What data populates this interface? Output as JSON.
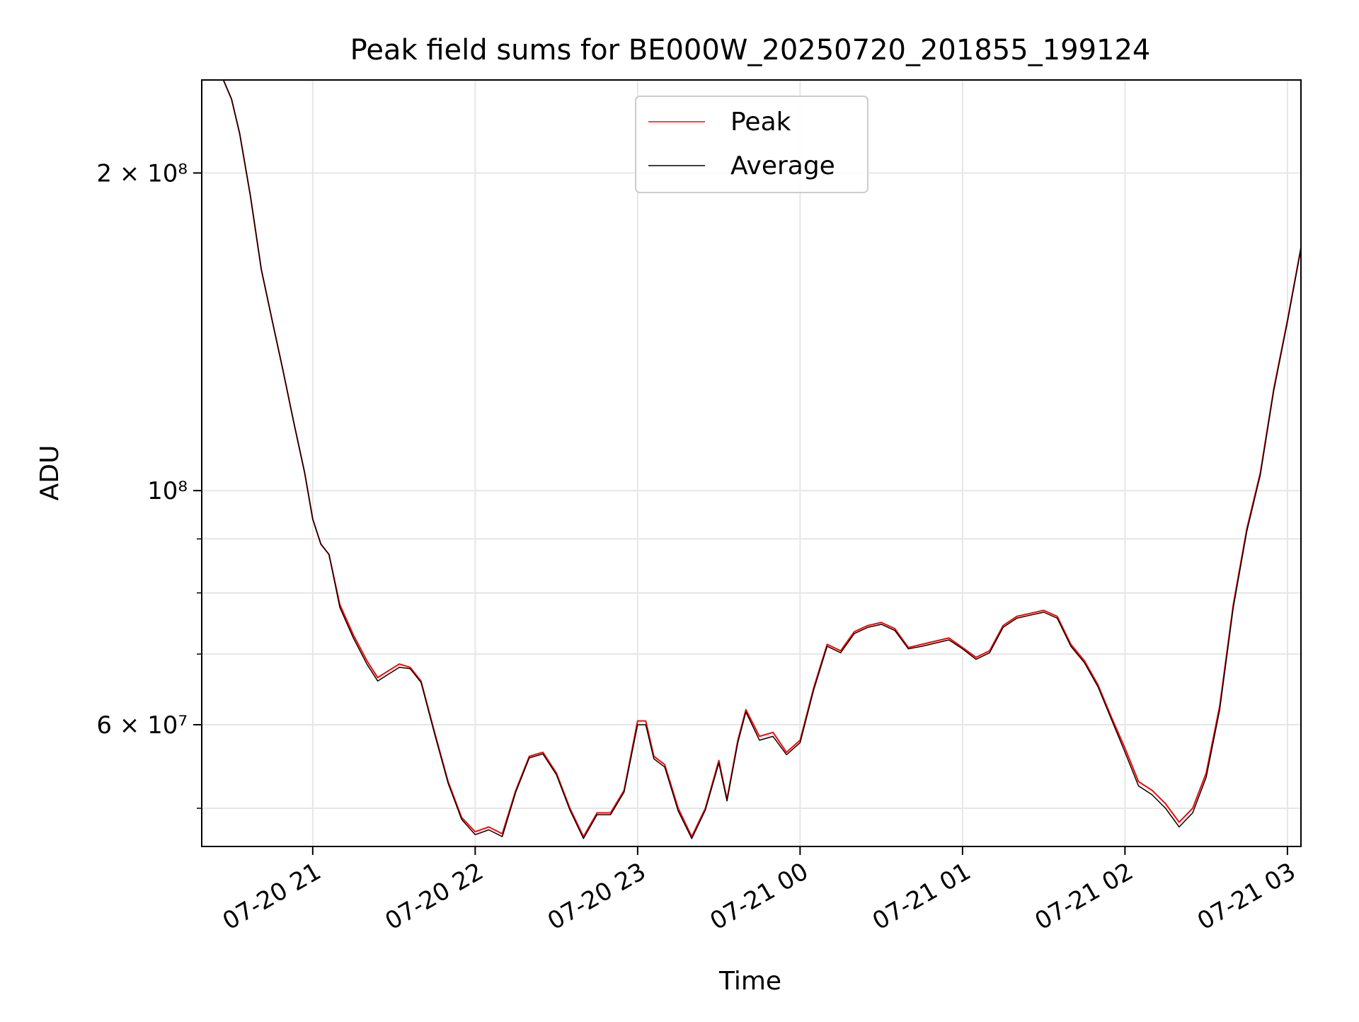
{
  "chart_data": {
    "type": "line",
    "title": "Peak field sums for BE000W_20250720_201855_199124",
    "xlabel": "Time",
    "ylabel": "ADU",
    "yscale": "log",
    "grid": true,
    "legend_placement": "upper center",
    "xlim": [
      "2025-07-20T20:19",
      "2025-07-21T03:05"
    ],
    "ylim": [
      46000000,
      245000000
    ],
    "x_ticks": [
      {
        "at": "2025-07-20T21:00",
        "label": "07-20 21"
      },
      {
        "at": "2025-07-20T22:00",
        "label": "07-20 22"
      },
      {
        "at": "2025-07-20T23:00",
        "label": "07-20 23"
      },
      {
        "at": "2025-07-21T00:00",
        "label": "07-21 00"
      },
      {
        "at": "2025-07-21T01:00",
        "label": "07-21 01"
      },
      {
        "at": "2025-07-21T02:00",
        "label": "07-21 02"
      },
      {
        "at": "2025-07-21T03:00",
        "label": "07-21 03"
      }
    ],
    "y_ticks": [
      {
        "value": 200000000,
        "label": "2 × 10⁸"
      },
      {
        "value": 100000000,
        "label": "10⁸"
      },
      {
        "value": 60000000,
        "label": "6 × 10⁷"
      }
    ],
    "y_minor_grid": [
      50000000,
      70000000,
      80000000,
      90000000
    ],
    "series": [
      {
        "name": "Peak",
        "color": "#ff0000",
        "points": [
          [
            "2025-07-20T20:27",
            245000000
          ],
          [
            "2025-07-20T20:30",
            235000000
          ],
          [
            "2025-07-20T20:33",
            218000000
          ],
          [
            "2025-07-20T20:37",
            190000000
          ],
          [
            "2025-07-20T20:41",
            162000000
          ],
          [
            "2025-07-20T20:45",
            145000000
          ],
          [
            "2025-07-20T20:49",
            130000000
          ],
          [
            "2025-07-20T20:53",
            116000000
          ],
          [
            "2025-07-20T20:57",
            104000000
          ],
          [
            "2025-07-20T21:00",
            94000000
          ],
          [
            "2025-07-20T21:03",
            89000000
          ],
          [
            "2025-07-20T21:06",
            87000000
          ],
          [
            "2025-07-20T21:10",
            78000000
          ],
          [
            "2025-07-20T21:15",
            73000000
          ],
          [
            "2025-07-20T21:20",
            69000000
          ],
          [
            "2025-07-20T21:24",
            66500000
          ],
          [
            "2025-07-20T21:28",
            67500000
          ],
          [
            "2025-07-20T21:32",
            68500000
          ],
          [
            "2025-07-20T21:36",
            68000000
          ],
          [
            "2025-07-20T21:40",
            66000000
          ],
          [
            "2025-07-20T21:45",
            59000000
          ],
          [
            "2025-07-20T21:50",
            53000000
          ],
          [
            "2025-07-20T21:55",
            49000000
          ],
          [
            "2025-07-20T22:00",
            47500000
          ],
          [
            "2025-07-20T22:05",
            48000000
          ],
          [
            "2025-07-20T22:10",
            47300000
          ],
          [
            "2025-07-20T22:15",
            52000000
          ],
          [
            "2025-07-20T22:20",
            56000000
          ],
          [
            "2025-07-20T22:25",
            56500000
          ],
          [
            "2025-07-20T22:30",
            54000000
          ],
          [
            "2025-07-20T22:35",
            50000000
          ],
          [
            "2025-07-20T22:40",
            47000000
          ],
          [
            "2025-07-20T22:45",
            49500000
          ],
          [
            "2025-07-20T22:50",
            49500000
          ],
          [
            "2025-07-20T22:55",
            52000000
          ],
          [
            "2025-07-20T23:00",
            60500000
          ],
          [
            "2025-07-20T23:03",
            60500000
          ],
          [
            "2025-07-20T23:06",
            56000000
          ],
          [
            "2025-07-20T23:10",
            55000000
          ],
          [
            "2025-07-20T23:15",
            50000000
          ],
          [
            "2025-07-20T23:20",
            47000000
          ],
          [
            "2025-07-20T23:25",
            50000000
          ],
          [
            "2025-07-20T23:30",
            55500000
          ],
          [
            "2025-07-20T23:33",
            51000000
          ],
          [
            "2025-07-20T23:37",
            58000000
          ],
          [
            "2025-07-20T23:40",
            62000000
          ],
          [
            "2025-07-20T23:45",
            58500000
          ],
          [
            "2025-07-20T23:50",
            59000000
          ],
          [
            "2025-07-20T23:55",
            56500000
          ],
          [
            "2025-07-21T00:00",
            58000000
          ],
          [
            "2025-07-21T00:05",
            65000000
          ],
          [
            "2025-07-21T00:10",
            71500000
          ],
          [
            "2025-07-21T00:15",
            70500000
          ],
          [
            "2025-07-21T00:20",
            73500000
          ],
          [
            "2025-07-21T00:25",
            74500000
          ],
          [
            "2025-07-21T00:30",
            75000000
          ],
          [
            "2025-07-21T00:35",
            74000000
          ],
          [
            "2025-07-21T00:40",
            71000000
          ],
          [
            "2025-07-21T00:45",
            71500000
          ],
          [
            "2025-07-21T00:50",
            72000000
          ],
          [
            "2025-07-21T00:55",
            72500000
          ],
          [
            "2025-07-21T01:00",
            71000000
          ],
          [
            "2025-07-21T01:05",
            69500000
          ],
          [
            "2025-07-21T01:10",
            70500000
          ],
          [
            "2025-07-21T01:15",
            74500000
          ],
          [
            "2025-07-21T01:20",
            76000000
          ],
          [
            "2025-07-21T01:25",
            76500000
          ],
          [
            "2025-07-21T01:30",
            77000000
          ],
          [
            "2025-07-21T01:35",
            76000000
          ],
          [
            "2025-07-21T01:40",
            71500000
          ],
          [
            "2025-07-21T01:45",
            69000000
          ],
          [
            "2025-07-21T01:50",
            65500000
          ],
          [
            "2025-07-21T01:55",
            61000000
          ],
          [
            "2025-07-21T02:00",
            57000000
          ],
          [
            "2025-07-21T02:05",
            53000000
          ],
          [
            "2025-07-21T02:10",
            52000000
          ],
          [
            "2025-07-21T02:15",
            50500000
          ],
          [
            "2025-07-21T02:20",
            48500000
          ],
          [
            "2025-07-21T02:25",
            50000000
          ],
          [
            "2025-07-21T02:30",
            54000000
          ],
          [
            "2025-07-21T02:35",
            62500000
          ],
          [
            "2025-07-21T02:40",
            78000000
          ],
          [
            "2025-07-21T02:45",
            92000000
          ],
          [
            "2025-07-21T02:50",
            104000000
          ],
          [
            "2025-07-21T02:55",
            125000000
          ],
          [
            "2025-07-21T03:00",
            145000000
          ],
          [
            "2025-07-21T03:05",
            170000000
          ]
        ]
      },
      {
        "name": "Average",
        "color": "#000000",
        "points": [
          [
            "2025-07-20T20:27",
            245000000
          ],
          [
            "2025-07-20T20:30",
            235000000
          ],
          [
            "2025-07-20T20:33",
            218000000
          ],
          [
            "2025-07-20T20:37",
            190000000
          ],
          [
            "2025-07-20T20:41",
            162000000
          ],
          [
            "2025-07-20T20:45",
            145000000
          ],
          [
            "2025-07-20T20:49",
            130000000
          ],
          [
            "2025-07-20T20:53",
            116000000
          ],
          [
            "2025-07-20T20:57",
            104000000
          ],
          [
            "2025-07-20T21:00",
            94000000
          ],
          [
            "2025-07-20T21:03",
            89000000
          ],
          [
            "2025-07-20T21:06",
            87000000
          ],
          [
            "2025-07-20T21:10",
            77500000
          ],
          [
            "2025-07-20T21:15",
            72500000
          ],
          [
            "2025-07-20T21:20",
            68500000
          ],
          [
            "2025-07-20T21:24",
            66000000
          ],
          [
            "2025-07-20T21:28",
            67000000
          ],
          [
            "2025-07-20T21:32",
            68000000
          ],
          [
            "2025-07-20T21:36",
            67800000
          ],
          [
            "2025-07-20T21:40",
            65800000
          ],
          [
            "2025-07-20T21:45",
            58800000
          ],
          [
            "2025-07-20T21:50",
            52800000
          ],
          [
            "2025-07-20T21:55",
            48800000
          ],
          [
            "2025-07-20T22:00",
            47200000
          ],
          [
            "2025-07-20T22:05",
            47700000
          ],
          [
            "2025-07-20T22:10",
            47000000
          ],
          [
            "2025-07-20T22:15",
            51800000
          ],
          [
            "2025-07-20T22:20",
            55800000
          ],
          [
            "2025-07-20T22:25",
            56300000
          ],
          [
            "2025-07-20T22:30",
            53800000
          ],
          [
            "2025-07-20T22:35",
            49800000
          ],
          [
            "2025-07-20T22:40",
            46800000
          ],
          [
            "2025-07-20T22:45",
            49300000
          ],
          [
            "2025-07-20T22:50",
            49300000
          ],
          [
            "2025-07-20T22:55",
            51800000
          ],
          [
            "2025-07-20T23:00",
            60000000
          ],
          [
            "2025-07-20T23:03",
            60000000
          ],
          [
            "2025-07-20T23:06",
            55700000
          ],
          [
            "2025-07-20T23:10",
            54700000
          ],
          [
            "2025-07-20T23:15",
            49700000
          ],
          [
            "2025-07-20T23:20",
            46800000
          ],
          [
            "2025-07-20T23:25",
            49800000
          ],
          [
            "2025-07-20T23:30",
            55200000
          ],
          [
            "2025-07-20T23:33",
            50800000
          ],
          [
            "2025-07-20T23:37",
            57700000
          ],
          [
            "2025-07-20T23:40",
            61700000
          ],
          [
            "2025-07-20T23:45",
            58000000
          ],
          [
            "2025-07-20T23:50",
            58500000
          ],
          [
            "2025-07-20T23:55",
            56200000
          ],
          [
            "2025-07-21T00:00",
            57700000
          ],
          [
            "2025-07-21T00:05",
            64700000
          ],
          [
            "2025-07-21T00:10",
            71200000
          ],
          [
            "2025-07-21T00:15",
            70200000
          ],
          [
            "2025-07-21T00:20",
            73200000
          ],
          [
            "2025-07-21T00:25",
            74200000
          ],
          [
            "2025-07-21T00:30",
            74700000
          ],
          [
            "2025-07-21T00:35",
            73700000
          ],
          [
            "2025-07-21T00:40",
            70800000
          ],
          [
            "2025-07-21T00:45",
            71200000
          ],
          [
            "2025-07-21T00:50",
            71700000
          ],
          [
            "2025-07-21T00:55",
            72200000
          ],
          [
            "2025-07-21T01:00",
            70800000
          ],
          [
            "2025-07-21T01:05",
            69200000
          ],
          [
            "2025-07-21T01:10",
            70200000
          ],
          [
            "2025-07-21T01:15",
            74200000
          ],
          [
            "2025-07-21T01:20",
            75700000
          ],
          [
            "2025-07-21T01:25",
            76200000
          ],
          [
            "2025-07-21T01:30",
            76700000
          ],
          [
            "2025-07-21T01:35",
            75700000
          ],
          [
            "2025-07-21T01:40",
            71200000
          ],
          [
            "2025-07-21T01:45",
            68700000
          ],
          [
            "2025-07-21T01:50",
            65200000
          ],
          [
            "2025-07-21T01:55",
            60700000
          ],
          [
            "2025-07-21T02:00",
            56500000
          ],
          [
            "2025-07-21T02:05",
            52500000
          ],
          [
            "2025-07-21T02:10",
            51500000
          ],
          [
            "2025-07-21T02:15",
            50000000
          ],
          [
            "2025-07-21T02:20",
            48000000
          ],
          [
            "2025-07-21T02:25",
            49500000
          ],
          [
            "2025-07-21T02:30",
            53500000
          ],
          [
            "2025-07-21T02:35",
            62000000
          ],
          [
            "2025-07-21T02:40",
            77500000
          ],
          [
            "2025-07-21T02:45",
            91500000
          ],
          [
            "2025-07-21T02:50",
            103500000
          ],
          [
            "2025-07-21T02:55",
            124500000
          ],
          [
            "2025-07-21T03:00",
            144500000
          ],
          [
            "2025-07-21T03:05",
            169500000
          ]
        ]
      }
    ]
  }
}
